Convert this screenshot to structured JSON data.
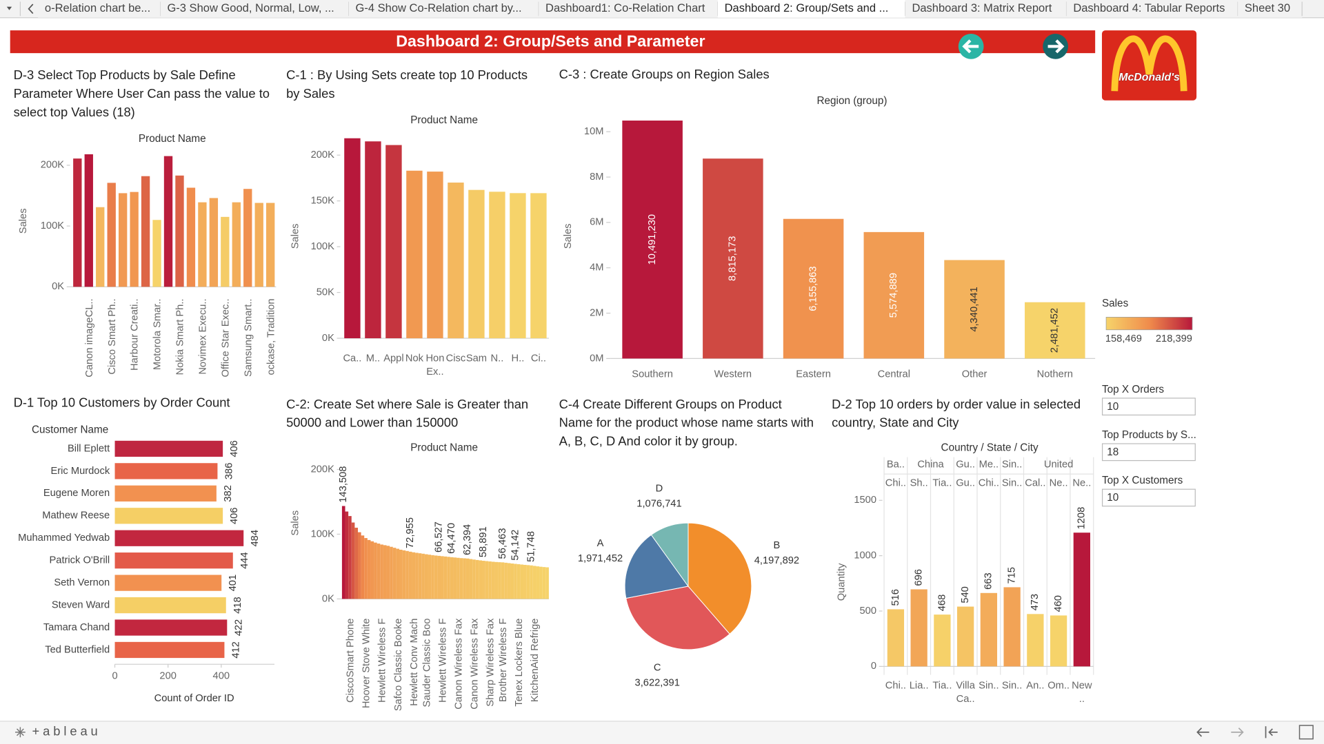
{
  "tabs": [
    {
      "label": "o-Relation chart be...",
      "active": false
    },
    {
      "label": "G-3 Show Good, Normal, Low, ...",
      "active": false
    },
    {
      "label": "G-4 Show Co-Relation chart by...",
      "active": false
    },
    {
      "label": "Dashboard1: Co-Relation Chart",
      "active": false
    },
    {
      "label": "Dashboard 2: Group/Sets and ...",
      "active": true
    },
    {
      "label": "Dashboard 3: Matrix Report",
      "active": false
    },
    {
      "label": "Dashboard 4: Tabular Reports",
      "active": false
    },
    {
      "label": "Sheet 30",
      "active": false
    }
  ],
  "header": {
    "title": "Dashboard 2: Group/Sets and Parameter",
    "logo": "McDonald's"
  },
  "chart_data": [
    {
      "type": "bar",
      "title": "D-3 Select Top Products by Sale Define Parameter Where User Can pass the value to select top Values (18)",
      "header": "Product Name",
      "ylabel": "Sales",
      "categories": [
        null,
        "Canon imageCL..",
        null,
        "Cisco Smart Ph..",
        null,
        "Harbour Creati..",
        null,
        "Motorola Smar..",
        null,
        "Nokia Smart Ph..",
        null,
        "Novimex Execu..",
        null,
        "Office Star Exec..",
        null,
        "Samsung Smart..",
        null,
        "ockase, Tradition"
      ],
      "values": [
        211000,
        218000,
        131000,
        171000,
        154000,
        156000,
        182000,
        110000,
        215000,
        183000,
        163000,
        139000,
        146000,
        115000,
        139000,
        161000,
        138000,
        138000
      ],
      "ylim": [
        0,
        222000
      ],
      "yticks": [
        {
          "value": 0,
          "label": "0K"
        },
        {
          "value": 100000,
          "label": "100K"
        },
        {
          "value": 200000,
          "label": "200K"
        }
      ],
      "color_scale": [
        "#f6d36a",
        "#f08c4c",
        "#b7183b"
      ]
    },
    {
      "type": "bar",
      "title": "C-1 : By Using Sets create top 10 Products by Sales",
      "header": "Product Name",
      "ylabel": "Sales",
      "categories": [
        "Ca..",
        "M..",
        "Appl",
        "Nok",
        "Hon Ex..",
        "Cisc",
        "Sam",
        "N..",
        "H..",
        "Ci.."
      ],
      "values": [
        218399,
        215000,
        211000,
        183000,
        182000,
        170000,
        162000,
        160000,
        158500,
        158469
      ],
      "ylim": [
        0,
        222000
      ],
      "yticks": [
        {
          "value": 0,
          "label": "0K"
        },
        {
          "value": 50000,
          "label": "50K"
        },
        {
          "value": 100000,
          "label": "100K"
        },
        {
          "value": 150000,
          "label": "150K"
        },
        {
          "value": 200000,
          "label": "200K"
        }
      ],
      "color_scale": [
        "#f6d36a",
        "#f08c4c",
        "#b7183b"
      ]
    },
    {
      "type": "bar",
      "title": "C-3 : Create Groups on Region Sales",
      "header": "Region (group)",
      "ylabel": "Sales",
      "categories": [
        "Southern",
        "Western",
        "Eastern",
        "Central",
        "Other",
        "Nothern"
      ],
      "values": [
        10491230,
        8815173,
        6155863,
        5574889,
        4340441,
        2481452
      ],
      "value_labels": [
        "10,491,230",
        "8,815,173",
        "6,155,863",
        "5,574,889",
        "4,340,441",
        "2,481,452"
      ],
      "ylim": [
        0,
        10600000
      ],
      "yticks": [
        {
          "value": 0,
          "label": "0M"
        },
        {
          "value": 2000000,
          "label": "2M"
        },
        {
          "value": 4000000,
          "label": "4M"
        },
        {
          "value": 6000000,
          "label": "6M"
        },
        {
          "value": 8000000,
          "label": "8M"
        },
        {
          "value": 10000000,
          "label": "10M"
        }
      ],
      "color_scale": [
        "#f6d36a",
        "#f08c4c",
        "#b7183b"
      ]
    },
    {
      "type": "barh",
      "title": "D-1 Top 10 Customers by Order Count",
      "header": "Customer Name",
      "xlabel": "Count of Order ID",
      "categories": [
        "Bill Eplett",
        "Eric Murdock",
        "Eugene Moren",
        "Mathew Reese",
        "Muhammed Yedwab",
        "Patrick O'Brill",
        "Seth Vernon",
        "Steven Ward",
        "Tamara Chand",
        "Ted Butterfield"
      ],
      "values": [
        406,
        386,
        382,
        406,
        484,
        444,
        401,
        418,
        422,
        412
      ],
      "colors": [
        "#bf2640",
        "#e86448",
        "#f29150",
        "#f5cf65",
        "#c2273f",
        "#e35a49",
        "#f29150",
        "#f5cf65",
        "#c2273f",
        "#e86448"
      ],
      "xlim": [
        0,
        600
      ],
      "xticks": [
        0,
        200,
        400
      ]
    },
    {
      "type": "bar",
      "title": "C-2: Create Set where Sale is Greater than 50000 and Lower than 150000",
      "header": "Product Name",
      "ylabel": "Sales",
      "categories": [
        null,
        null,
        "CiscoSmart Phone",
        null,
        null,
        null,
        null,
        "Hoover Stove  White",
        null,
        null,
        null,
        null,
        "Hewlett Wireless F",
        null,
        null,
        null,
        null,
        "Safco Classic Booke",
        null,
        null,
        null,
        null,
        "Hewlett Conv Mach",
        null,
        null,
        null,
        "Sauder Classic Boo",
        null,
        null,
        null,
        null,
        "Hewlett Wireless F",
        null,
        null,
        null,
        null,
        "Canon Wireless Fax",
        null,
        null,
        null,
        null,
        "Canon Wireless Fax",
        null,
        null,
        null,
        null,
        "Sharp Wireless Fax",
        null,
        null,
        null,
        "Brother Wireless F",
        null,
        null,
        null,
        null,
        "Tenex Lockers Blue",
        null,
        null,
        null,
        null,
        "KitchenAid Refrige",
        null,
        null,
        null,
        null
      ],
      "values": [
        143508,
        135000,
        128000,
        118000,
        110000,
        103000,
        98000,
        94000,
        91000,
        89000,
        87000,
        85500,
        84000,
        83000,
        82000,
        80500,
        79000,
        77500,
        76000,
        75000,
        74000,
        72955,
        72000,
        71200,
        70500,
        69800,
        69000,
        68300,
        67600,
        67000,
        66527,
        66000,
        65500,
        65000,
        64470,
        64000,
        63500,
        63000,
        62700,
        62394,
        61600,
        60800,
        60100,
        59500,
        58891,
        58400,
        57900,
        57400,
        57000,
        56700,
        56463,
        55900,
        55300,
        54700,
        54142,
        53600,
        53100,
        52600,
        52200,
        51748,
        51000,
        50300,
        49700,
        49200,
        48800
      ],
      "value_labels": [
        "143,508",
        null,
        null,
        null,
        null,
        null,
        null,
        null,
        null,
        null,
        null,
        null,
        null,
        null,
        null,
        null,
        null,
        null,
        null,
        null,
        null,
        "72,955",
        null,
        null,
        null,
        null,
        null,
        null,
        null,
        null,
        "66,527",
        null,
        null,
        null,
        "64,470",
        null,
        null,
        null,
        null,
        "62,394",
        null,
        null,
        null,
        null,
        "58,891",
        null,
        null,
        null,
        null,
        null,
        "56,463",
        null,
        null,
        null,
        "54,142",
        null,
        null,
        null,
        null,
        "51,748",
        null,
        null,
        null,
        null,
        null
      ],
      "ylim": [
        0,
        215000
      ],
      "yticks": [
        {
          "value": 0,
          "label": "0K"
        },
        {
          "value": 100000,
          "label": "100K"
        },
        {
          "value": 200000,
          "label": "200K"
        }
      ],
      "color_scale": [
        "#f6d36a",
        "#f08c4c",
        "#b7183b"
      ]
    },
    {
      "type": "pie",
      "title": "C-4 Create Different Groups on Product Name for the product whose name starts with A, B, C, D And color it by group.",
      "categories": [
        "B",
        "C",
        "A",
        "D"
      ],
      "values": [
        4197892,
        3622391,
        1971452,
        1076741
      ],
      "value_labels": [
        "4,197,892",
        "3,622,391",
        "1,971,452",
        "1,076,741"
      ],
      "colors": [
        "#f28e2b",
        "#e15759",
        "#4e79a7",
        "#76b7b2"
      ]
    },
    {
      "type": "bar",
      "title": "D-2 Top 10 orders by order value in selected country, State and City",
      "header": "Country / State / City",
      "ylabel": "Quantity",
      "countries": [
        "Ba..",
        "China",
        null,
        "Gu..",
        "Me..",
        "Sin..",
        "United",
        null,
        null
      ],
      "states": [
        "Chi..",
        "Sh..",
        "Tia..",
        "Gu..",
        "Chi..",
        "Sin..",
        "Cal..",
        "Ne..",
        "Ne.."
      ],
      "categories": [
        "Chi..",
        "Lia..",
        "Tia..",
        "Villa Ca..",
        "Sin..",
        "Sin..",
        "An..",
        "Om..",
        "New .."
      ],
      "values": [
        516,
        696,
        468,
        540,
        663,
        715,
        473,
        460,
        1208
      ],
      "ylim": [
        0,
        1600
      ],
      "yticks": [
        0,
        500,
        1000,
        1500
      ],
      "color_scale": [
        "#f6d36a",
        "#f08c4c",
        "#b7183b"
      ]
    }
  ],
  "legend": {
    "title": "Sales",
    "min_label": "158,469",
    "max_label": "218,399",
    "colors": [
      "#f6d36a",
      "#f08c4c",
      "#b7183b"
    ]
  },
  "parameters": [
    {
      "label": "Top X Orders",
      "value": 10
    },
    {
      "label": "Top Products by S...",
      "value": 18
    },
    {
      "label": "Top X Customers",
      "value": 10
    }
  ],
  "footer": {
    "logo": "+ableau"
  }
}
